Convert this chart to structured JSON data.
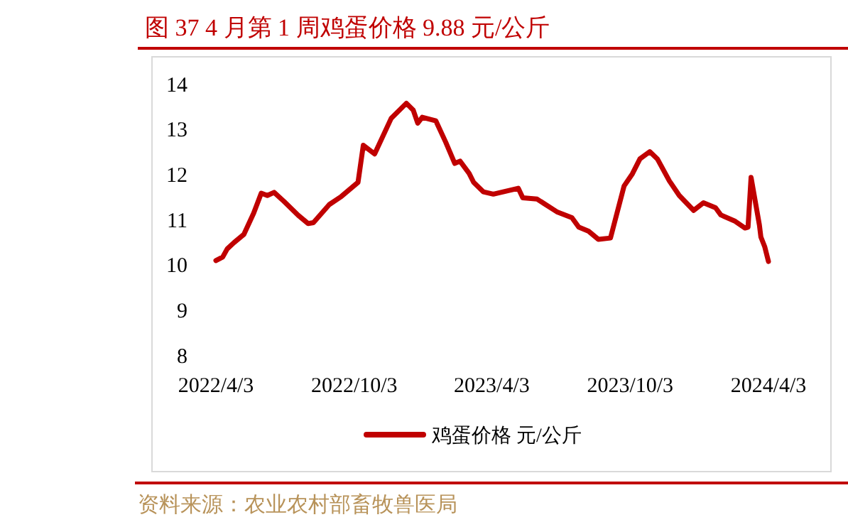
{
  "chart_data": {
    "type": "line",
    "title": "图 37 4 月第 1 周鸡蛋价格 9.88 元/公斤",
    "annotations": [
      "资料来源：农业农村部畜牧兽医局"
    ],
    "x": [
      "2022-04-03",
      "2022-04-12",
      "2022-04-18",
      "2022-04-27",
      "2022-05-10",
      "2022-05-23",
      "2022-06-02",
      "2022-06-10",
      "2022-06-19",
      "2022-07-02",
      "2022-07-21",
      "2022-08-03",
      "2022-08-10",
      "2022-08-31",
      "2022-09-16",
      "2022-10-08",
      "2022-10-15",
      "2022-10-30",
      "2022-11-21",
      "2022-12-11",
      "2022-12-20",
      "2022-12-26",
      "2023-01-01",
      "2023-01-19",
      "2023-02-01",
      "2023-02-13",
      "2023-02-20",
      "2023-03-04",
      "2023-03-10",
      "2023-03-23",
      "2023-04-05",
      "2023-05-08",
      "2023-05-14",
      "2023-06-02",
      "2023-06-28",
      "2023-07-18",
      "2023-07-27",
      "2023-08-09",
      "2023-08-22",
      "2023-09-07",
      "2023-09-25",
      "2023-10-06",
      "2023-10-16",
      "2023-10-29",
      "2023-11-08",
      "2023-11-24",
      "2023-12-07",
      "2023-12-26",
      "2024-01-08",
      "2024-01-24",
      "2024-01-31",
      "2024-02-19",
      "2024-03-03",
      "2024-03-07",
      "2024-03-11",
      "2024-03-22",
      "2024-03-24",
      "2024-03-29",
      "2024-04-03"
    ],
    "xlim": [
      "2022-04-03",
      "2024-04-03"
    ],
    "series": [
      {
        "name": "鸡蛋价格 元/公斤",
        "color": "#c00000",
        "values": [
          10.09,
          10.17,
          10.35,
          10.49,
          10.67,
          11.14,
          11.58,
          11.53,
          11.6,
          11.4,
          11.09,
          10.91,
          10.93,
          11.33,
          11.51,
          11.82,
          12.64,
          12.45,
          13.24,
          13.57,
          13.42,
          13.13,
          13.26,
          13.18,
          12.71,
          12.24,
          12.29,
          12.02,
          11.82,
          11.61,
          11.56,
          11.69,
          11.48,
          11.45,
          11.17,
          11.04,
          10.83,
          10.74,
          10.56,
          10.59,
          11.74,
          12.01,
          12.34,
          12.5,
          12.34,
          11.85,
          11.53,
          11.2,
          11.37,
          11.26,
          11.1,
          10.96,
          10.81,
          10.83,
          11.93,
          10.88,
          10.61,
          10.4,
          10.07
        ]
      }
    ],
    "xticks": [
      {
        "value": "2022-04-03",
        "label": "2022/4/3"
      },
      {
        "value": "2022-10-03",
        "label": "2022/10/3"
      },
      {
        "value": "2023-04-03",
        "label": "2023/4/3"
      },
      {
        "value": "2023-10-03",
        "label": "2023/10/3"
      },
      {
        "value": "2024-04-03",
        "label": "2024/4/3"
      }
    ],
    "ylim": [
      8,
      14
    ],
    "yticks": [
      8,
      9,
      10,
      11,
      12,
      13,
      14
    ],
    "grid": false,
    "legend": "bottom",
    "marker": "none",
    "line_style": "solid"
  }
}
